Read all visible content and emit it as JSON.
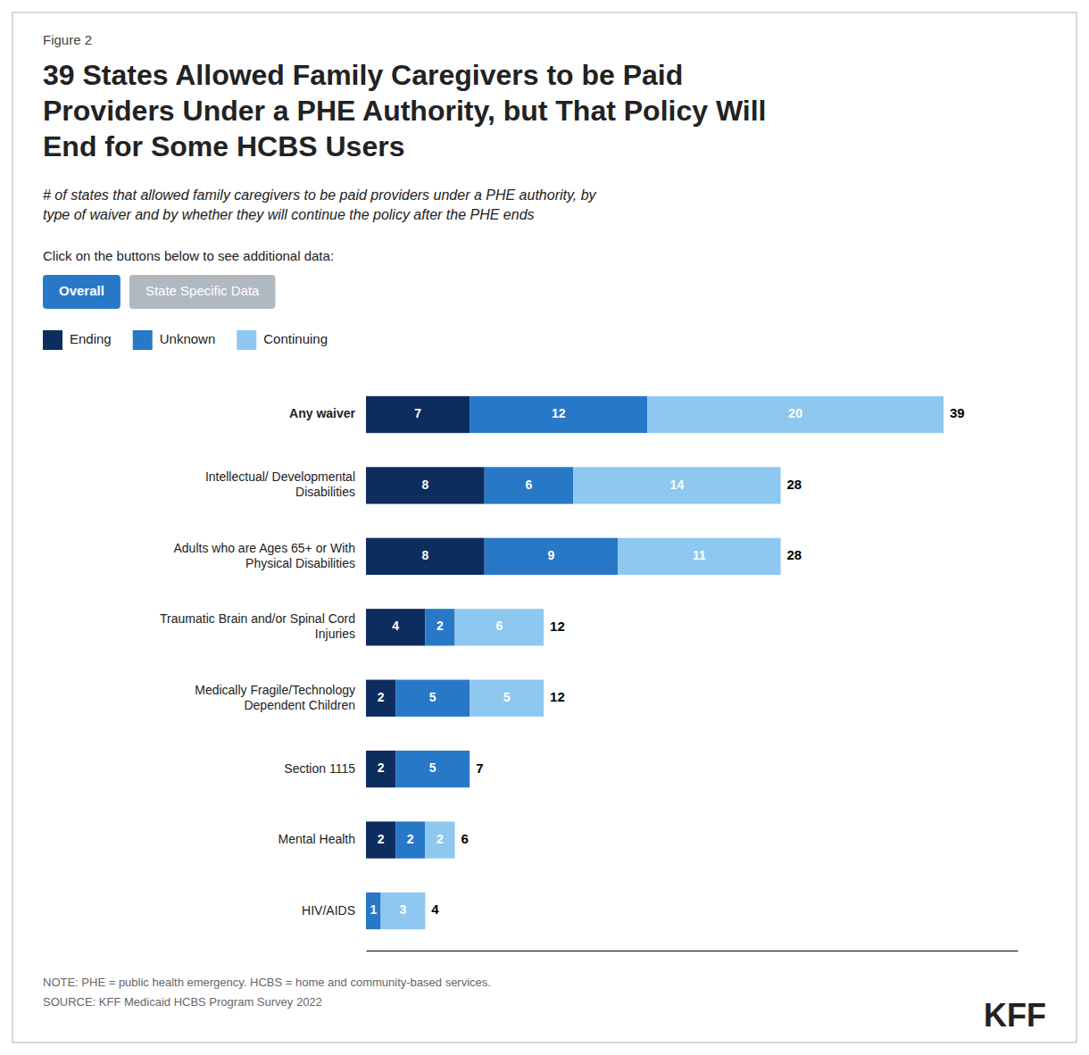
{
  "chart_data": {
    "type": "bar",
    "orientation": "horizontal",
    "stacked": true,
    "data_labels": true,
    "tick_labels": "y",
    "figure_label": "Figure 2",
    "title": "39 States Allowed Family Caregivers to be Paid\nProviders Under a PHE Authority, but That Policy Will\nEnd for Some HCBS Users",
    "subtitle": "# of states that allowed family caregivers to be paid providers under a PHE authority, by\ntype of waiver and by whether they will continue the policy after the PHE ends",
    "instruction": "Click on the buttons below to see additional data:",
    "buttons": [
      "Overall",
      "State Specific Data"
    ],
    "notes": [
      "NOTE: PHE = public health emergency. HCBS = home and community-based services.",
      "SOURCE: KFF Medicaid HCBS Program Survey 2022"
    ],
    "logo": "KFF",
    "categories": [
      "Any waiver",
      "Intellectual/ Developmental\nDisabilities",
      "Adults who are Ages 65+ or With\nPhysical Disabilities",
      "Traumatic Brain and/or Spinal Cord\nInjuries",
      "Medically Fragile/Technology\nDependent Children",
      "Section 1115",
      "Mental Health",
      "HIV/AIDS"
    ],
    "series": [
      {
        "name": "Ending",
        "color": "#0d2d5e",
        "values": [
          7,
          8,
          8,
          4,
          2,
          2,
          2,
          0
        ]
      },
      {
        "name": "Unknown",
        "color": "#2878c8",
        "values": [
          12,
          6,
          9,
          2,
          5,
          5,
          2,
          1
        ]
      },
      {
        "name": "Continuing",
        "color": "#8ec8f0",
        "values": [
          20,
          14,
          11,
          6,
          5,
          0,
          2,
          3
        ]
      }
    ],
    "totals": [
      39,
      28,
      28,
      12,
      12,
      7,
      6,
      4
    ],
    "xlim": [
      0,
      44
    ],
    "xticks": []
  }
}
